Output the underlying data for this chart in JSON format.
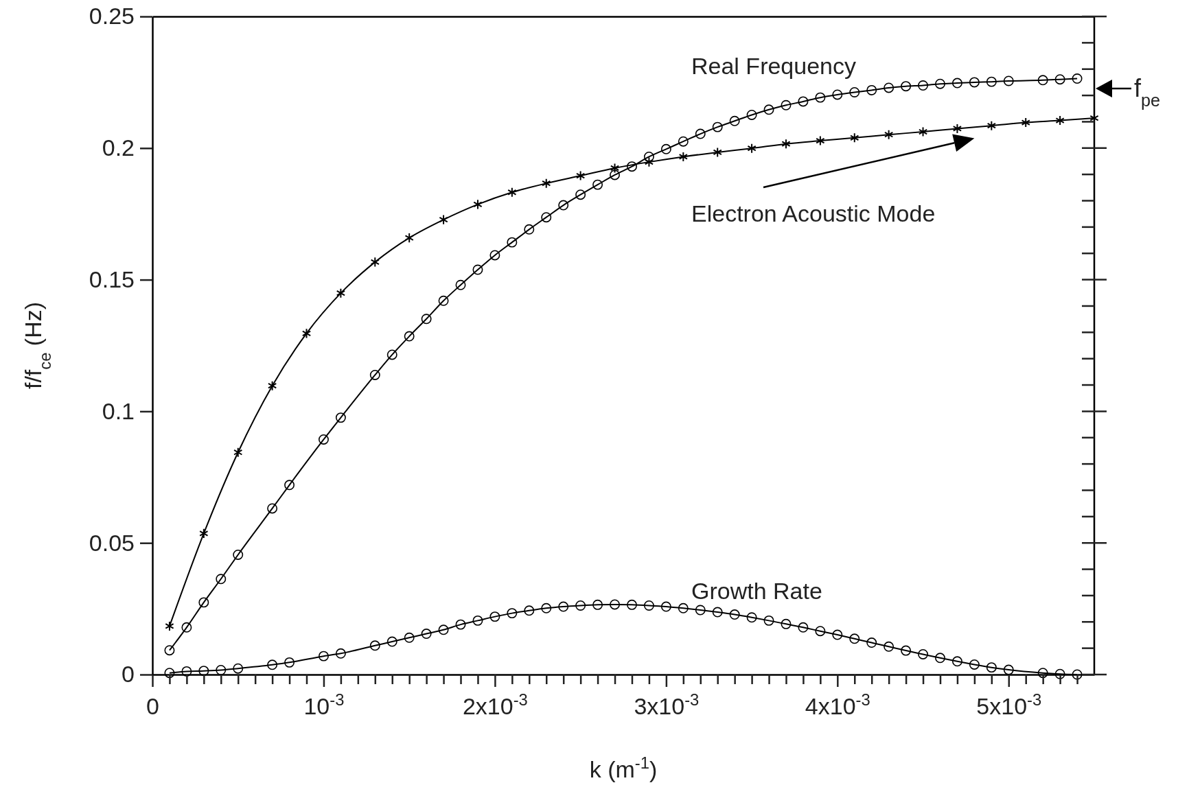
{
  "chart_data": {
    "type": "line",
    "xlabel": "k (m$^{-1}$)",
    "ylabel": "f/f$_{ce}$ (Hz)",
    "xlim": [
      0,
      0.0055
    ],
    "ylim": [
      0,
      0.25
    ],
    "xticks": [
      0,
      {
        "value": 0.0001,
        "label": null
      },
      {
        "value": 0.0002,
        "label": null
      },
      {
        "value": 0.0003,
        "label": null
      },
      {
        "value": 0.0004,
        "label": null
      },
      {
        "value": 0.0005,
        "label": null
      },
      {
        "value": 0.0006,
        "label": null
      },
      {
        "value": 0.0007,
        "label": null
      },
      {
        "value": 0.0008,
        "label": null
      },
      {
        "value": 0.0009,
        "label": null
      },
      {
        "value": 0.001,
        "label": "10$^{-3}$"
      },
      {
        "value": 0.0011,
        "label": null
      },
      {
        "value": 0.0012,
        "label": null
      },
      {
        "value": 0.0013,
        "label": null
      },
      {
        "value": 0.0014,
        "label": null
      },
      {
        "value": 0.0015,
        "label": null
      },
      {
        "value": 0.0016,
        "label": null
      },
      {
        "value": 0.0017,
        "label": null
      },
      {
        "value": 0.0018,
        "label": null
      },
      {
        "value": 0.0019,
        "label": null
      },
      {
        "value": 0.002,
        "label": "2x10$^{-3}$"
      },
      {
        "value": 0.0021,
        "label": null
      },
      {
        "value": 0.0022,
        "label": null
      },
      {
        "value": 0.0023,
        "label": null
      },
      {
        "value": 0.0024,
        "label": null
      },
      {
        "value": 0.0025,
        "label": null
      },
      {
        "value": 0.0026,
        "label": null
      },
      {
        "value": 0.0027,
        "label": null
      },
      {
        "value": 0.0028,
        "label": null
      },
      {
        "value": 0.0029,
        "label": null
      },
      {
        "value": 0.003,
        "label": "3x10$^{-3}$"
      },
      {
        "value": 0.0031,
        "label": null
      },
      {
        "value": 0.0032,
        "label": null
      },
      {
        "value": 0.0033,
        "label": null
      },
      {
        "value": 0.0034,
        "label": null
      },
      {
        "value": 0.0035,
        "label": null
      },
      {
        "value": 0.0036,
        "label": null
      },
      {
        "value": 0.0037,
        "label": null
      },
      {
        "value": 0.0038,
        "label": null
      },
      {
        "value": 0.0039,
        "label": null
      },
      {
        "value": 0.004,
        "label": "4x10$^{-3}$"
      },
      {
        "value": 0.0041,
        "label": null
      },
      {
        "value": 0.0042,
        "label": null
      },
      {
        "value": 0.0043,
        "label": null
      },
      {
        "value": 0.0044,
        "label": null
      },
      {
        "value": 0.0045,
        "label": null
      },
      {
        "value": 0.0046,
        "label": null
      },
      {
        "value": 0.0047,
        "label": null
      },
      {
        "value": 0.0048,
        "label": null
      },
      {
        "value": 0.0049,
        "label": null
      },
      {
        "value": 0.005,
        "label": "5x10$^{-3}$"
      },
      {
        "value": 0.0051,
        "label": null
      },
      {
        "value": 0.0052,
        "label": null
      },
      {
        "value": 0.0053,
        "label": null
      },
      {
        "value": 0.0054,
        "label": null
      }
    ],
    "yticks": [
      0,
      0.05,
      0.1,
      0.15,
      0.2,
      0.25
    ],
    "series": [
      {
        "name": "Real Frequency",
        "color": "#000000",
        "marker": "circle",
        "x": [
          0.0001,
          0.0002,
          0.0003,
          0.0004,
          0.0005,
          0.0007,
          0.0008,
          0.001,
          0.0011,
          0.0013,
          0.0014,
          0.0015,
          0.0016,
          0.0017,
          0.0018,
          0.0019,
          0.002,
          0.0021,
          0.0022,
          0.0023,
          0.0024,
          0.0025,
          0.0026,
          0.0027,
          0.0028,
          0.0029,
          0.003,
          0.0031,
          0.0032,
          0.0033,
          0.0034,
          0.0035,
          0.0036,
          0.0037,
          0.0038,
          0.0039,
          0.004,
          0.0041,
          0.0042,
          0.0043,
          0.0044,
          0.0045,
          0.0046,
          0.0047,
          0.0048,
          0.0049,
          0.005,
          0.0052,
          0.0053,
          0.0054
        ],
        "values": [
          0.0092,
          0.0179,
          0.0274,
          0.0363,
          0.0455,
          0.0631,
          0.072,
          0.0893,
          0.0976,
          0.1138,
          0.1215,
          0.1285,
          0.1351,
          0.142,
          0.148,
          0.1538,
          0.1593,
          0.1642,
          0.1691,
          0.1737,
          0.1783,
          0.1823,
          0.1861,
          0.1898,
          0.193,
          0.1967,
          0.1996,
          0.2025,
          0.2054,
          0.208,
          0.2103,
          0.2126,
          0.2146,
          0.2163,
          0.2177,
          0.2192,
          0.2203,
          0.2212,
          0.222,
          0.2229,
          0.2235,
          0.2238,
          0.2244,
          0.2247,
          0.225,
          0.2252,
          0.2255,
          0.2258,
          0.2261,
          0.2264
        ]
      },
      {
        "name": "Electron Acoustic Mode",
        "color": "#000000",
        "marker": "cross",
        "x": [
          0.0001,
          0.0003,
          0.0005,
          0.0007,
          0.0009,
          0.0011,
          0.0013,
          0.0015,
          0.0017,
          0.0019,
          0.0021,
          0.0023,
          0.0025,
          0.0027,
          0.0029,
          0.0031,
          0.0033,
          0.0035,
          0.0037,
          0.0039,
          0.0041,
          0.0043,
          0.0045,
          0.0047,
          0.0049,
          0.0051,
          0.0053,
          0.0055
        ],
        "values": [
          0.0184,
          0.0536,
          0.0844,
          0.1097,
          0.1296,
          0.1449,
          0.1567,
          0.1659,
          0.1728,
          0.1786,
          0.1832,
          0.1866,
          0.1895,
          0.1924,
          0.1947,
          0.1967,
          0.1984,
          0.1999,
          0.2016,
          0.2028,
          0.2039,
          0.2051,
          0.2062,
          0.2074,
          0.2085,
          0.2097,
          0.2105,
          0.2114
        ]
      },
      {
        "name": "Growth Rate",
        "color": "#000000",
        "marker": "circle",
        "x": [
          0.0001,
          0.0002,
          0.0003,
          0.0004,
          0.0005,
          0.0007,
          0.0008,
          0.001,
          0.0011,
          0.0013,
          0.0014,
          0.0015,
          0.0016,
          0.0017,
          0.0018,
          0.0019,
          0.002,
          0.0021,
          0.0022,
          0.0023,
          0.0024,
          0.0025,
          0.0026,
          0.0027,
          0.0028,
          0.0029,
          0.003,
          0.0031,
          0.0032,
          0.0033,
          0.0034,
          0.0035,
          0.0036,
          0.0037,
          0.0038,
          0.0039,
          0.004,
          0.0041,
          0.0042,
          0.0043,
          0.0044,
          0.0045,
          0.0046,
          0.0047,
          0.0048,
          0.0049,
          0.005,
          0.0052,
          0.0053,
          0.0054
        ],
        "values": [
          0.0006,
          0.0012,
          0.0014,
          0.0017,
          0.0023,
          0.0037,
          0.0046,
          0.007,
          0.008,
          0.011,
          0.0125,
          0.014,
          0.0155,
          0.017,
          0.019,
          0.0205,
          0.022,
          0.0233,
          0.0243,
          0.0252,
          0.0258,
          0.0262,
          0.0265,
          0.0266,
          0.0265,
          0.0262,
          0.0258,
          0.0252,
          0.0245,
          0.0237,
          0.0228,
          0.0217,
          0.0205,
          0.0192,
          0.0179,
          0.0165,
          0.0151,
          0.0136,
          0.0121,
          0.0106,
          0.0091,
          0.0077,
          0.0063,
          0.005,
          0.0038,
          0.0027,
          0.0018,
          0.0006,
          0.0002,
          0.0
        ]
      }
    ],
    "annotations": [
      "f$_{pe}$"
    ]
  }
}
